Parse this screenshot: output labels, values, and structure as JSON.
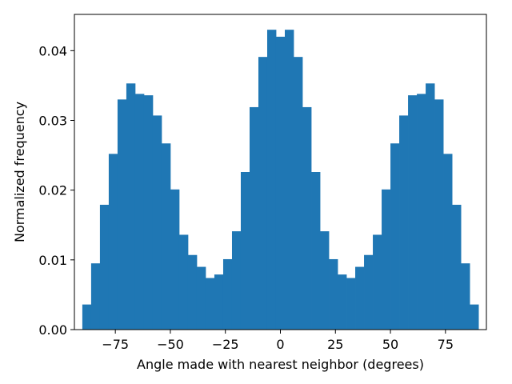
{
  "chart_data": {
    "type": "bar",
    "title": "",
    "xlabel": "Angle made with nearest neighbor (degrees)",
    "ylabel": "Normalized frequency",
    "xlim": [
      -93.6,
      93.6
    ],
    "ylim": [
      0,
      0.0452
    ],
    "x_ticks": [
      -75,
      -50,
      -25,
      0,
      25,
      50,
      75
    ],
    "x_tick_labels": [
      "−75",
      "−50",
      "−25",
      "0",
      "25",
      "50",
      "75"
    ],
    "y_ticks": [
      0,
      0.01,
      0.02,
      0.03,
      0.04
    ],
    "y_tick_labels": [
      "0.00",
      "0.01",
      "0.02",
      "0.03",
      "0.04"
    ],
    "bin_edges": [
      -90,
      -86,
      -82,
      -78,
      -74,
      -70,
      -66,
      -62,
      -58,
      -54,
      -50,
      -46,
      -42,
      -38,
      -34,
      -30,
      -26,
      -22,
      -18,
      -14,
      -10,
      -6,
      -2,
      2,
      6,
      10,
      14,
      18,
      22,
      26,
      30,
      34,
      38,
      42,
      46,
      50,
      54,
      58,
      62,
      66,
      70,
      74,
      78,
      82,
      86,
      90
    ],
    "values": [
      0.0036,
      0.0095,
      0.0179,
      0.0252,
      0.033,
      0.0353,
      0.0338,
      0.0336,
      0.0307,
      0.0267,
      0.0201,
      0.0136,
      0.0107,
      0.009,
      0.0074,
      0.0079,
      0.0101,
      0.0141,
      0.0226,
      0.0319,
      0.0391,
      0.043,
      0.042,
      0.043,
      0.0391,
      0.0319,
      0.0226,
      0.0141,
      0.0101,
      0.0079,
      0.0074,
      0.009,
      0.0107,
      0.0136,
      0.0201,
      0.0267,
      0.0307,
      0.0336,
      0.0338,
      0.0353,
      0.033,
      0.0252,
      0.0179,
      0.0095,
      0.0036
    ],
    "color": "#1f77b4",
    "grid": false
  }
}
